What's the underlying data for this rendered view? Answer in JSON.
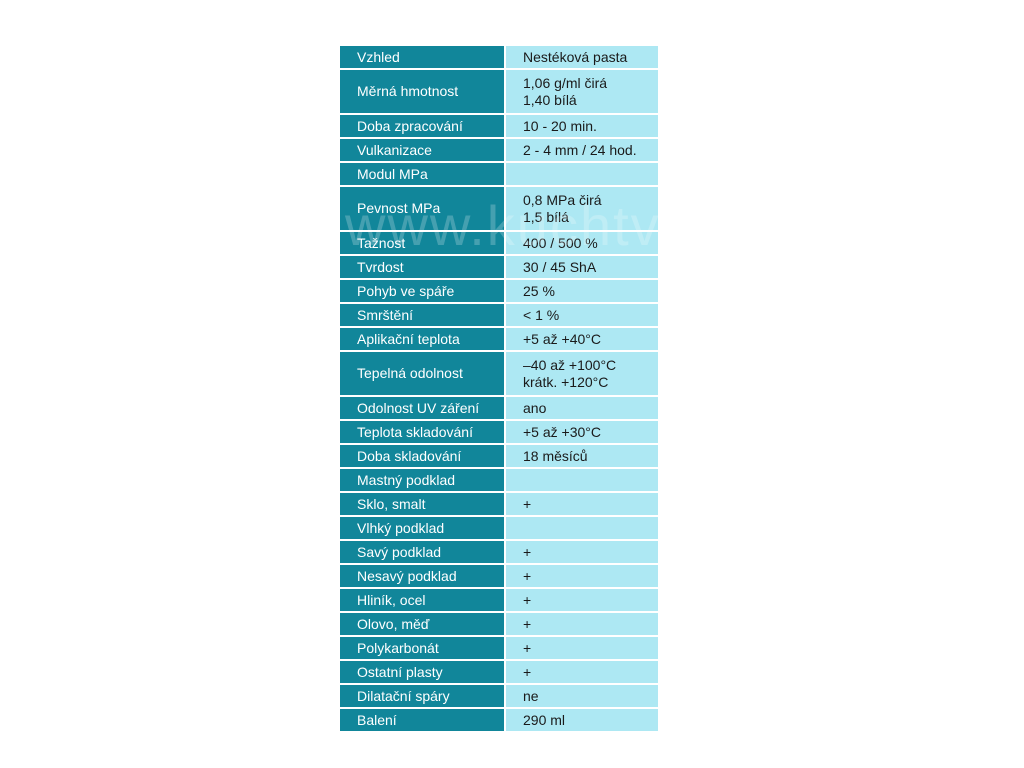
{
  "colors": {
    "label_bg": "#11869a",
    "value_bg": "#ade8f3",
    "label_text": "#ffffff",
    "value_text": "#1a1a1a"
  },
  "watermark": "www.kuchtvi.cz",
  "rows": [
    {
      "label": "Vzhled",
      "value": [
        "Nestéková pasta"
      ]
    },
    {
      "label": "Měrná hmotnost",
      "value": [
        "1,06 g/ml čirá",
        "1,40 bílá"
      ]
    },
    {
      "label": "Doba zpracování",
      "value": [
        "10 - 20 min."
      ]
    },
    {
      "label": "Vulkanizace",
      "value": [
        "2 - 4 mm / 24 hod."
      ]
    },
    {
      "label": "Modul MPa",
      "value": []
    },
    {
      "label": "Pevnost MPa",
      "value": [
        "0,8 MPa čirá",
        "1,5 bílá"
      ]
    },
    {
      "label": "Tažnost",
      "value": [
        "400 / 500 %"
      ]
    },
    {
      "label": "Tvrdost",
      "value": [
        "30 / 45 ShA"
      ]
    },
    {
      "label": "Pohyb ve spáře",
      "value": [
        "25 %"
      ]
    },
    {
      "label": "Smrštění",
      "value": [
        "< 1 %"
      ]
    },
    {
      "label": "Aplikační teplota",
      "value": [
        "+5 až +40°C"
      ]
    },
    {
      "label": "Tepelná odolnost",
      "value": [
        "–40 až +100°C",
        "krátk. +120°C"
      ]
    },
    {
      "label": "Odolnost UV záření",
      "value": [
        "ano"
      ]
    },
    {
      "label": "Teplota skladování",
      "value": [
        "+5 až +30°C"
      ]
    },
    {
      "label": "Doba skladování",
      "value": [
        "18 měsíců"
      ]
    },
    {
      "label": "Mastný podklad",
      "value": []
    },
    {
      "label": "Sklo, smalt",
      "value": [
        "+"
      ]
    },
    {
      "label": "Vlhký podklad",
      "value": []
    },
    {
      "label": "Savý podklad",
      "value": [
        "+"
      ]
    },
    {
      "label": "Nesavý podklad",
      "value": [
        "+"
      ]
    },
    {
      "label": "Hliník, ocel",
      "value": [
        "+"
      ]
    },
    {
      "label": "Olovo, měď",
      "value": [
        "+"
      ]
    },
    {
      "label": "Polykarbonát",
      "value": [
        "+"
      ]
    },
    {
      "label": "Ostatní plasty",
      "value": [
        "+"
      ]
    },
    {
      "label": "Dilatační spáry",
      "value": [
        "ne"
      ]
    },
    {
      "label": "Balení",
      "value": [
        "290 ml"
      ]
    }
  ]
}
